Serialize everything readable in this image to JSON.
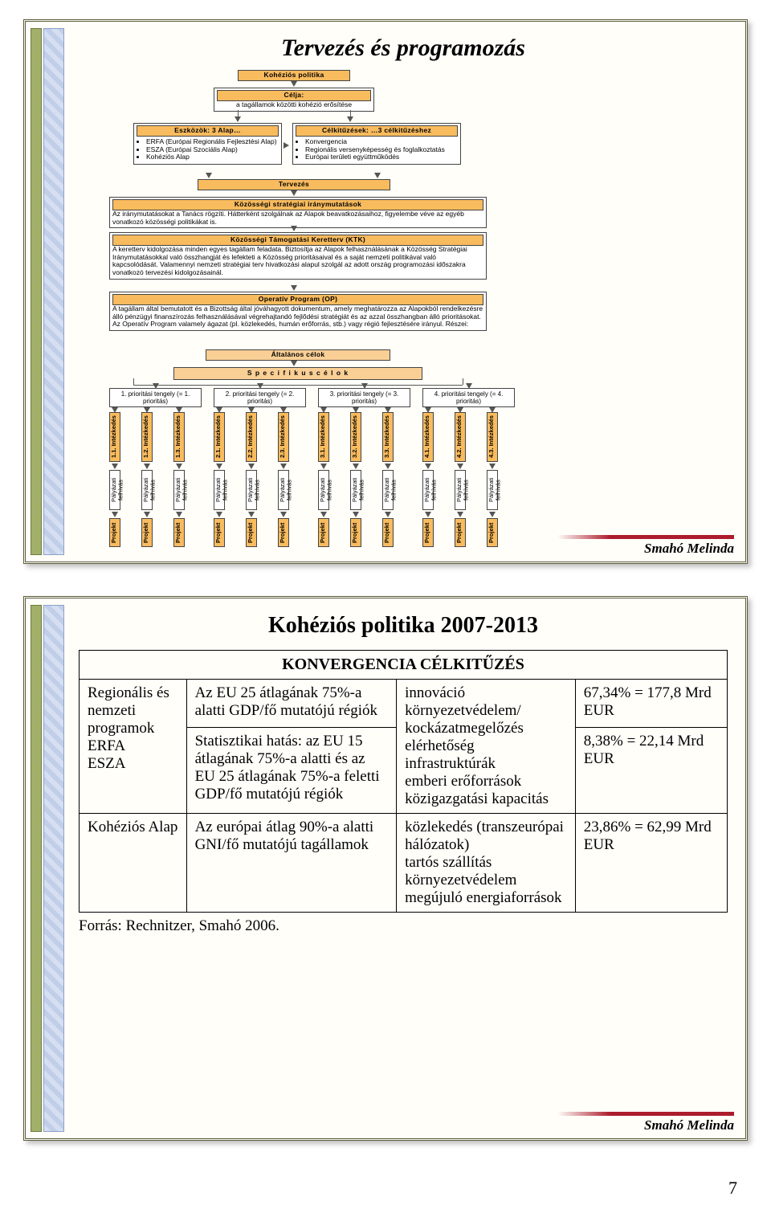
{
  "page_number": "7",
  "author": "Smahó Melinda",
  "slide1": {
    "title": "Tervezés és programozás",
    "flow": {
      "top": {
        "kohezios": "Kohéziós politika",
        "celja_hdr": "Célja:",
        "celja_body": "a tagállamok közötti kohézió erősítése",
        "eszkozok_hdr": "Eszközök:\n3 Alap…",
        "eszkozok_items": [
          "ERFA (Európai Regionális Fejlesztési Alap)",
          "ESZA (Európai Szociális Alap)",
          "Kohéziós Alap"
        ],
        "celkituzesek_hdr": "Célkitűzések:\n…3 célkitűzéshez",
        "celkituzesek_items": [
          "Konvergencia",
          "Regionális versenyképesség és foglalkoztatás",
          "Európai területi együttműködés"
        ]
      },
      "mid": {
        "tervezes": "Tervezés",
        "ksi_hdr": "Közösségi stratégiai iránymutatások",
        "ksi_body": "Az iránymutatásokat a Tanács rögzíti. Hátterként szolgálnak az Alapok beavatkozásaihoz, figyelembe véve az egyéb vonatkozó közösségi politikákat is.",
        "ktk_hdr": "Közösségi Támogatási Keretterv (KTK)",
        "ktk_body": "A keretterv kidolgozása minden egyes tagállam feladata. Biztosítja az Alapok felhasználásának a Közösség Stratégiai Iránymutatásokkal való összhangját és lefekteti a Közösség prioritásaival és a saját nemzeti politikával való kapcsolódását. Valamennyi nemzeti stratégiai terv hivatkozási alapul szolgál az adott ország programozási időszakra vonatkozó tervezési kidolgozásainál.",
        "op_hdr": "Operatív Program (OP)",
        "op_body": "A tagállam által bemutatott és a Bizottság által jóváhagyott dokumentum, amely meghatározza az Alapokból rendelkezésre álló pénzügyi finanszírozás felhasználásával végrehajtandó fejlődési stratégiát és az azzal összhangban álló prioritásokat. Az Operatív Program valamely ágazat (pl. közlekedés, humán erőforrás, stb.) vagy régió fejlesztésére irányul. Részei:",
        "alt_celok": "Általános célok",
        "spec_celok": "S p e c i f i k u s   c é l o k"
      },
      "priorities": [
        "1. prioritási tengely (= 1. prioritás)",
        "2. prioritási tengely (= 2. prioritás)",
        "3. prioritási tengely (= 3. prioritás)",
        "4. prioritási tengely (= 4. prioritás)"
      ],
      "intezkedesek": [
        "1.1. Intézkedés",
        "1.2. Intézkedés",
        "1.3. Intézkedés",
        "2.1. Intézkedés",
        "2.2. Intézkedés",
        "2.3. Intézkedés",
        "3.1. Intézkedés",
        "3.2. Intézkedés",
        "3.3. Intézkedés",
        "4.1. Intézkedés",
        "4.2. Intézkedés",
        "4.3. Intézkedés"
      ],
      "palyazat": "Pályázati felhívás",
      "projekt": "Projekt"
    }
  },
  "slide2": {
    "title": "Kohéziós politika 2007-2013",
    "span_header": "KONVERGENCIA CÉLKITŰZÉS",
    "rows": [
      {
        "c1": "Regionális és nemzeti programok\nERFA\nESZA",
        "c2a": "Az EU 25 átlagának 75%-a alatti GDP/fő mutatójú régiók",
        "c2b": "Statisztikai hatás: az EU 15 átlagának 75%-a alatti és az EU 25 átlagának 75%-a feletti GDP/fő mutatójú régiók",
        "c3": "innováció\nkörnyezetvédelem/\nkockázatmegelőzés\nelérhetőség\ninfrastruktúrák\nemberi erőforrások\nközigazgatási kapacitás",
        "c4a": "67,34% = 177,8 Mrd EUR",
        "c4b": "8,38% = 22,14 Mrd EUR"
      },
      {
        "c1": "Kohéziós Alap",
        "c2": "Az európai átlag 90%-a alatti GNI/fő mutatójú tagállamok",
        "c3": "közlekedés (transzeurópai hálózatok)\ntartós szállítás\nkörnyezetvédelem\nmegújuló energiaforrások",
        "c4": "23,86% = 62,99 Mrd EUR"
      }
    ],
    "source": "Forrás: Rechnitzer, Smahó 2006."
  }
}
